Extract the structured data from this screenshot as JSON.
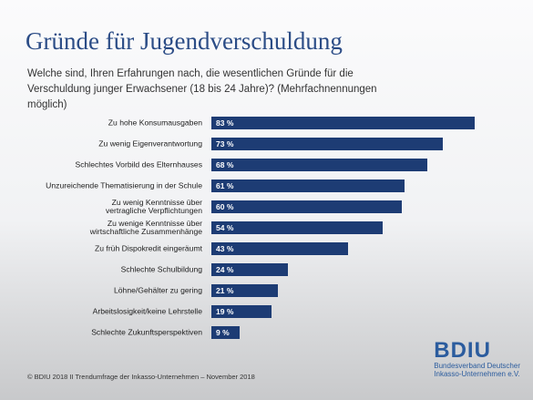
{
  "chart_data": {
    "type": "bar",
    "orientation": "horizontal",
    "title": "Gründe für Jugendverschuldung",
    "subtitle": "Welche sind, Ihren Erfahrungen nach, die wesentlichen Gründe für die Verschuldung junger Erwachsener (18 bis 24 Jahre)? (Mehrfachnennungen möglich)",
    "categories": [
      "Zu hohe Konsumausgaben",
      "Zu wenig Eigenverantwortung",
      "Schlechtes Vorbild des Elternhauses",
      "Unzureichende Thematisierung in der Schule",
      "Zu wenig Kenntnisse über\nvertragliche Verpflichtungen",
      "Zu wenige Kenntnisse über\nwirtschaftliche Zusammenhänge",
      "Zu früh Dispokredit eingeräumt",
      "Schlechte Schulbildung",
      "Löhne/Gehälter zu gering",
      "Arbeitslosigkeit/keine Lehrstelle",
      "Schlechte Zukunftsperspektiven"
    ],
    "values": [
      83,
      73,
      68,
      61,
      60,
      54,
      43,
      24,
      21,
      19,
      9
    ],
    "value_labels": [
      "83 %",
      "73 %",
      "68 %",
      "61 %",
      "60 %",
      "54 %",
      "43 %",
      "24 %",
      "21 %",
      "19 %",
      "9 %"
    ],
    "color": "#1d3c74",
    "footer": "© BDIU 2018 II Trendumfrage der Inkasso-Unternehmen – November 2018",
    "logo": {
      "name": "BDIU",
      "line1": "Bundesverband Deutscher",
      "line2": "Inkasso-Unternehmen e.V."
    }
  }
}
